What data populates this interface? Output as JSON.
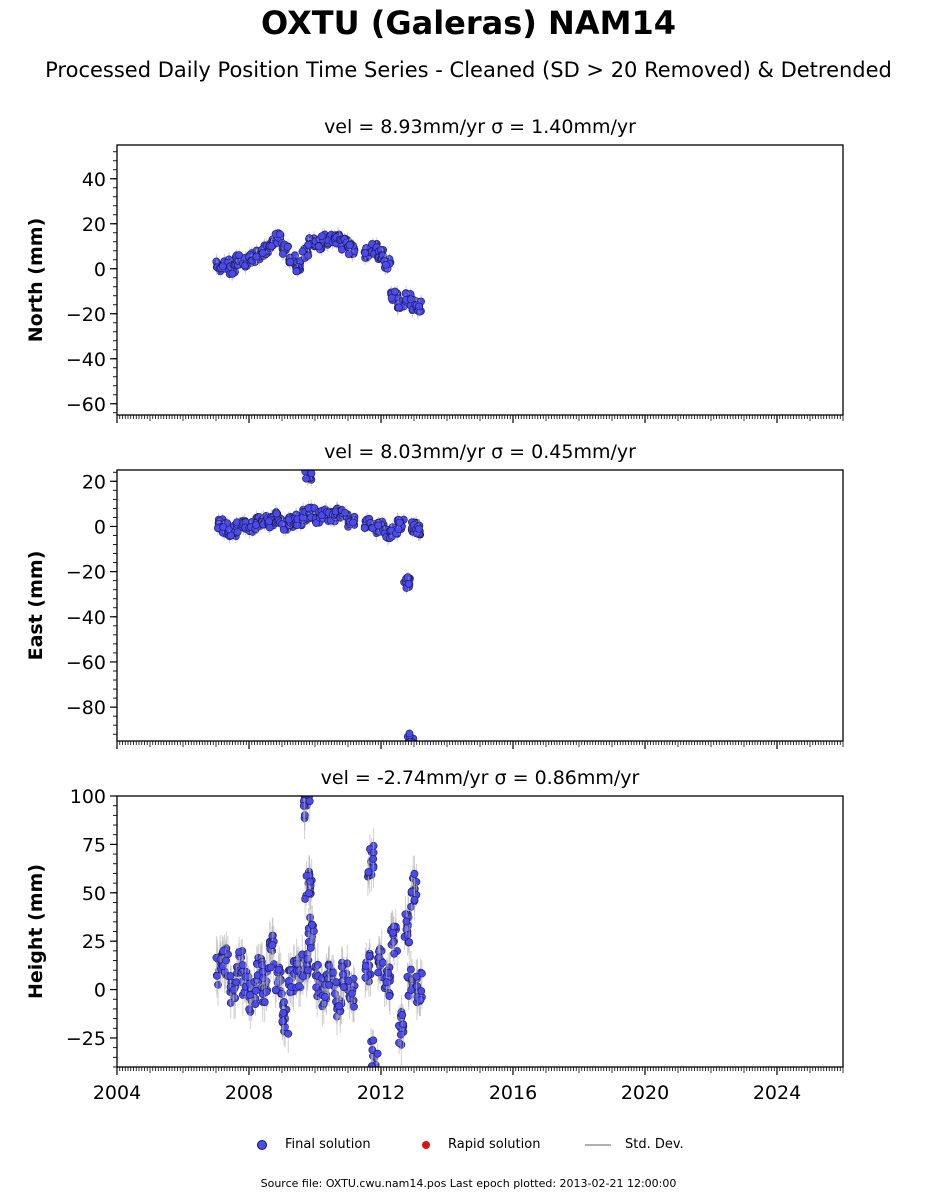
{
  "figure": {
    "title": "OXTU (Galeras) NAM14",
    "subtitle": "Processed Daily Position Time Series - Cleaned (SD > 20 Removed) & Detrended",
    "source": "Source file: OXTU.cwu.nam14.pos  Last epoch plotted: 2013-02-21 12:00:00"
  },
  "legend": {
    "final_label": "Final solution",
    "rapid_label": "Rapid solution",
    "std_label": "Std. Dev."
  },
  "colors": {
    "final": "#4a4af0",
    "final_edge": "#1a1a4a",
    "rapid": "#e01010",
    "std": "#b0b0b0",
    "axis": "#000000"
  },
  "chart_data": [
    {
      "type": "scatter",
      "panel": "north",
      "title": "vel = 8.93mm/yr   σ = 1.40mm/yr",
      "ylabel": "North (mm)",
      "xlim": [
        2004.0,
        2026.0
      ],
      "ylim": [
        -65,
        55
      ],
      "yticks": [
        -60,
        -40,
        -20,
        0,
        20,
        40
      ],
      "series": [
        {
          "x": [
            2007.1,
            2007.3,
            2007.5,
            2007.7,
            2007.9,
            2008.1,
            2008.3,
            2008.5,
            2008.7,
            2008.9,
            2009.1,
            2009.3,
            2009.5,
            2009.7,
            2009.9,
            2010.1,
            2010.3,
            2010.5,
            2010.7,
            2010.9,
            2011.1,
            2011.6,
            2011.8,
            2012.0,
            2012.2,
            2012.4,
            2012.6,
            2012.8,
            2013.0,
            2013.15
          ],
          "y": [
            1,
            2,
            0,
            4,
            3,
            5,
            6,
            8,
            11,
            14,
            9,
            4,
            1,
            7,
            12,
            11,
            13,
            14,
            13,
            11,
            9,
            7,
            9,
            6,
            2,
            -12,
            -15,
            -13,
            -16,
            -17
          ]
        }
      ]
    },
    {
      "type": "scatter",
      "panel": "east",
      "title": "vel = 8.03mm/yr   σ = 0.45mm/yr",
      "ylabel": "East (mm)",
      "xlim": [
        2004.0,
        2026.0
      ],
      "ylim": [
        -95,
        25
      ],
      "yticks": [
        -80,
        -60,
        -40,
        -20,
        0,
        20
      ],
      "series": [
        {
          "x": [
            2007.1,
            2007.3,
            2007.5,
            2007.7,
            2007.9,
            2008.1,
            2008.3,
            2008.5,
            2008.7,
            2008.9,
            2009.1,
            2009.3,
            2009.5,
            2009.7,
            2009.8,
            2009.9,
            2010.1,
            2010.3,
            2010.5,
            2010.7,
            2010.9,
            2011.1,
            2011.6,
            2011.8,
            2012.0,
            2012.2,
            2012.4,
            2012.6,
            2012.8,
            2012.9,
            2013.0,
            2013.15
          ],
          "y": [
            1,
            -1,
            -2,
            0,
            1,
            0,
            2,
            3,
            2,
            4,
            1,
            2,
            3,
            5,
            22,
            6,
            4,
            5,
            4,
            6,
            5,
            2,
            1,
            -1,
            0,
            -3,
            -2,
            1,
            -25,
            -94,
            0,
            -2
          ]
        }
      ]
    },
    {
      "type": "scatter",
      "panel": "height",
      "title": "vel = -2.74mm/yr   σ = 0.86mm/yr",
      "ylabel": "Height (mm)",
      "xlim": [
        2004.0,
        2026.0
      ],
      "ylim": [
        -40,
        100
      ],
      "yticks": [
        -25,
        0,
        25,
        50,
        75,
        100
      ],
      "xticks": [
        2004,
        2008,
        2012,
        2016,
        2020,
        2024
      ],
      "series": [
        {
          "x": [
            2007.1,
            2007.3,
            2007.5,
            2007.7,
            2007.9,
            2008.1,
            2008.3,
            2008.5,
            2008.7,
            2008.9,
            2009.1,
            2009.3,
            2009.5,
            2009.7,
            2009.75,
            2009.8,
            2009.9,
            2010.1,
            2010.3,
            2010.5,
            2010.7,
            2010.9,
            2011.1,
            2011.6,
            2011.7,
            2011.8,
            2012.0,
            2012.2,
            2012.4,
            2012.6,
            2012.8,
            2012.9,
            2013.0,
            2013.15
          ],
          "y": [
            10,
            15,
            0,
            12,
            5,
            -5,
            8,
            2,
            20,
            5,
            -15,
            6,
            10,
            15,
            95,
            55,
            30,
            5,
            0,
            10,
            -5,
            5,
            0,
            10,
            66,
            -35,
            15,
            5,
            25,
            -20,
            30,
            5,
            51,
            0
          ]
        }
      ]
    }
  ]
}
